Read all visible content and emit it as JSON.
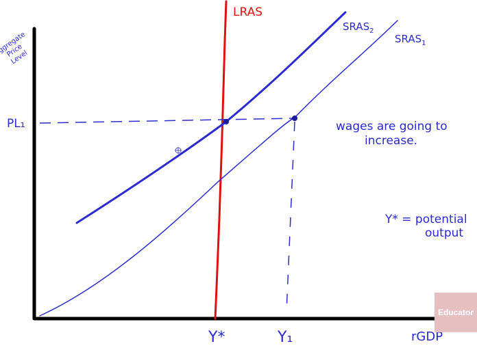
{
  "y_axis_label": [
    "Aggregate",
    "Price",
    "Level"
  ],
  "x_axis_label": "rGDP",
  "curves": {
    "lras": "LRAS",
    "sras2": {
      "main": "SRAS",
      "sub": "2"
    },
    "sras1": {
      "main": "SRAS",
      "sub": "1"
    }
  },
  "price_level": "PL₁",
  "x_marks": {
    "y_star": "Y*",
    "y1": "Y₁"
  },
  "notes": {
    "wages": [
      "wages are going to",
      "increase."
    ],
    "potential": [
      "Y* = potential",
      "output"
    ]
  },
  "watermark": "Educator",
  "colors": {
    "ink": "#2a2ad0",
    "lras": "#e01010"
  }
}
